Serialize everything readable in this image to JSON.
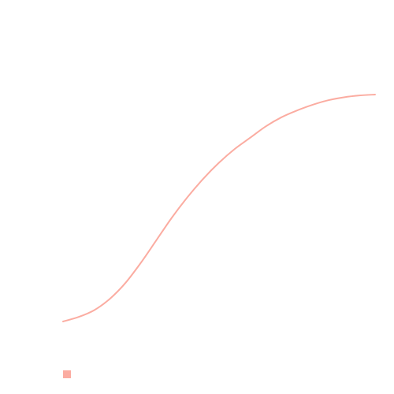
{
  "chart_data": {
    "type": "line",
    "title": "",
    "xlabel": "",
    "ylabel": "",
    "grid": false,
    "legend_position": "bottom-left",
    "x": [
      0,
      1,
      2,
      3,
      4,
      5,
      6,
      7,
      8,
      9,
      10,
      11,
      12,
      13,
      14,
      15,
      16,
      17,
      18,
      19,
      20
    ],
    "series": [
      {
        "name": "",
        "color": "#fbaca1",
        "values": [
          0.0,
          0.02,
          0.05,
          0.1,
          0.17,
          0.26,
          0.36,
          0.46,
          0.55,
          0.63,
          0.7,
          0.76,
          0.81,
          0.86,
          0.9,
          0.93,
          0.955,
          0.975,
          0.988,
          0.996,
          1.0
        ]
      }
    ],
    "xlim": [
      0,
      20
    ],
    "ylim": [
      0,
      1
    ]
  }
}
